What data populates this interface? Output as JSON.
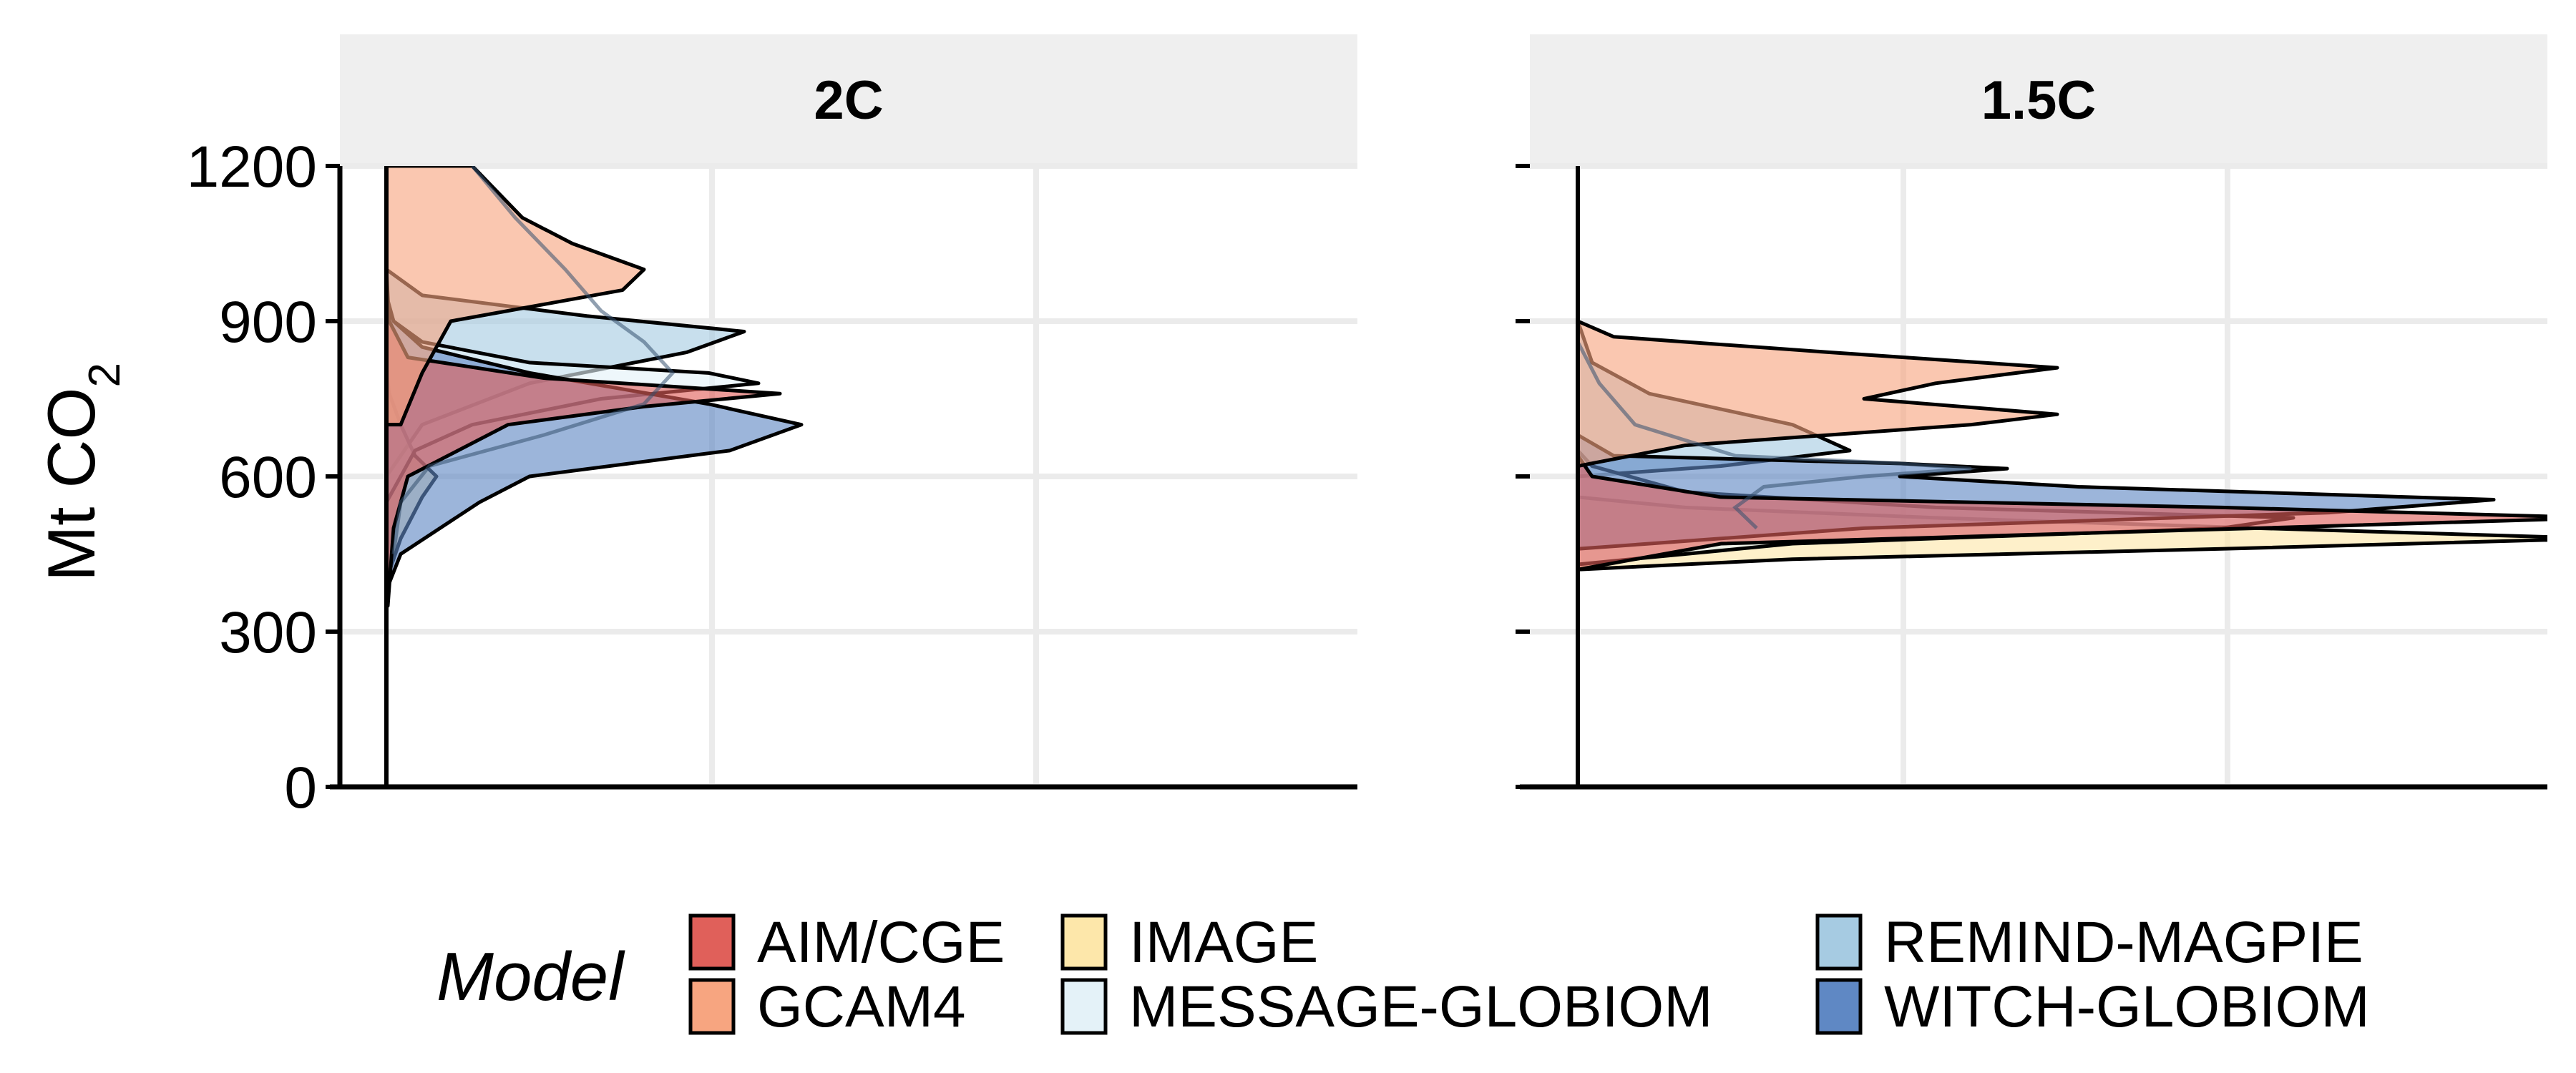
{
  "chart_data": {
    "type": "area",
    "chart_kind": "violin / density distributions by model, faceted",
    "ylabel": "Mt CO",
    "ylabel_subscript": "2",
    "ylim": [
      0,
      1200
    ],
    "yticks": [
      0,
      300,
      600,
      900,
      1200
    ],
    "grid": true,
    "legend": {
      "title": "Model",
      "placement": "bottom"
    },
    "colors": {
      "AIM/CGE": "#e0605a",
      "GCAM4": "#f7a580",
      "IMAGE": "#fde7aa",
      "MESSAGE-GLOBIOM": "#e4f2f8",
      "REMIND-MAGPIE": "#a6cbe2",
      "WITCH-GLOBIOM": "#5f88c4"
    },
    "series": [
      {
        "name": "AIM/CGE"
      },
      {
        "name": "GCAM4"
      },
      {
        "name": "IMAGE"
      },
      {
        "name": "MESSAGE-GLOBIOM"
      },
      {
        "name": "REMIND-MAGPIE"
      },
      {
        "name": "WITCH-GLOBIOM"
      }
    ],
    "facets": [
      {
        "title": "2C",
        "densities": {
          "AIM/CGE": [
            [
              350,
              0.002
            ],
            [
              500,
              0.01
            ],
            [
              600,
              0.03
            ],
            [
              700,
              0.17
            ],
            [
              735,
              0.36
            ],
            [
              760,
              0.55
            ],
            [
              790,
              0.22
            ],
            [
              830,
              0.03
            ],
            [
              900,
              0.004
            ],
            [
              1000,
              0.0
            ]
          ],
          "GCAM4": [
            [
              700,
              0.02
            ],
            [
              800,
              0.05
            ],
            [
              900,
              0.09
            ],
            [
              960,
              0.33
            ],
            [
              1000,
              0.36
            ],
            [
              1050,
              0.26
            ],
            [
              1100,
              0.19
            ],
            [
              1200,
              0.12
            ]
          ],
          "IMAGE": [
            [
              400,
              0.0
            ],
            [
              480,
              0.02
            ],
            [
              560,
              0.05
            ],
            [
              600,
              0.07
            ],
            [
              640,
              0.04
            ],
            [
              700,
              0.02
            ],
            [
              760,
              0.004
            ],
            [
              800,
              0.0
            ]
          ],
          "MESSAGE-GLOBIOM": [
            [
              550,
              0.0
            ],
            [
              650,
              0.04
            ],
            [
              700,
              0.12
            ],
            [
              750,
              0.3
            ],
            [
              780,
              0.52
            ],
            [
              800,
              0.45
            ],
            [
              820,
              0.2
            ],
            [
              860,
              0.05
            ],
            [
              900,
              0.01
            ],
            [
              950,
              0.0
            ]
          ],
          "REMIND-MAGPIE": [
            [
              600,
              0.0
            ],
            [
              700,
              0.05
            ],
            [
              780,
              0.2
            ],
            [
              840,
              0.42
            ],
            [
              880,
              0.5
            ],
            [
              910,
              0.28
            ],
            [
              950,
              0.05
            ],
            [
              1000,
              0.0
            ]
          ],
          "WITCH-GLOBIOM": [
            [
              380,
              0.0
            ],
            [
              450,
              0.02
            ],
            [
              550,
              0.13
            ],
            [
              600,
              0.2
            ],
            [
              650,
              0.48
            ],
            [
              700,
              0.58
            ],
            [
              740,
              0.45
            ],
            [
              800,
              0.2
            ],
            [
              850,
              0.05
            ],
            [
              900,
              0.01
            ],
            [
              940,
              0.0
            ]
          ]
        },
        "overlays": [
          [
            [
              450,
              0.01
            ],
            [
              550,
              0.02
            ],
            [
              620,
              0.06
            ],
            [
              680,
              0.22
            ],
            [
              740,
              0.36
            ],
            [
              800,
              0.4
            ],
            [
              860,
              0.36
            ],
            [
              920,
              0.3
            ],
            [
              1000,
              0.25
            ],
            [
              1100,
              0.18
            ],
            [
              1200,
              0.12
            ]
          ]
        ]
      },
      {
        "title": "1.5C",
        "densities": {
          "AIM/CGE": [
            [
              420,
              0.0
            ],
            [
              470,
              0.2
            ],
            [
              500,
              0.95
            ],
            [
              520,
              1.43
            ],
            [
              540,
              0.9
            ],
            [
              560,
              0.2
            ],
            [
              600,
              0.02
            ],
            [
              640,
              0.0
            ]
          ],
          "GCAM4": [
            [
              620,
              0.0
            ],
            [
              660,
              0.15
            ],
            [
              700,
              0.55
            ],
            [
              720,
              0.67
            ],
            [
              750,
              0.4
            ],
            [
              780,
              0.5
            ],
            [
              810,
              0.67
            ],
            [
              840,
              0.35
            ],
            [
              870,
              0.05
            ],
            [
              900,
              0.0
            ]
          ],
          "IMAGE": [
            [
              420,
              0.0
            ],
            [
              440,
              0.3
            ],
            [
              460,
              0.9
            ],
            [
              480,
              1.43
            ],
            [
              500,
              0.95
            ],
            [
              520,
              0.5
            ],
            [
              540,
              0.15
            ],
            [
              560,
              0.0
            ]
          ],
          "MESSAGE-GLOBIOM": [
            [
              430,
              0.0
            ],
            [
              470,
              0.3
            ],
            [
              500,
              0.9
            ],
            [
              520,
              1.0
            ],
            [
              540,
              0.5
            ],
            [
              570,
              0.15
            ],
            [
              620,
              0.02
            ],
            [
              650,
              0.0
            ]
          ],
          "REMIND-MAGPIE": [
            [
              600,
              0.0
            ],
            [
              620,
              0.2
            ],
            [
              650,
              0.38
            ],
            [
              700,
              0.3
            ],
            [
              760,
              0.1
            ],
            [
              820,
              0.02
            ],
            [
              900,
              0.0
            ]
          ],
          "WITCH-GLOBIOM": [
            [
              460,
              0.0
            ],
            [
              500,
              0.4
            ],
            [
              530,
              1.05
            ],
            [
              555,
              1.28
            ],
            [
              580,
              0.7
            ],
            [
              600,
              0.45
            ],
            [
              615,
              0.6
            ],
            [
              625,
              0.45
            ],
            [
              640,
              0.05
            ],
            [
              680,
              0.0
            ]
          ]
        },
        "overlays": [
          [
            [
              500,
              0.25
            ],
            [
              540,
              0.22
            ],
            [
              580,
              0.26
            ],
            [
              600,
              0.4
            ],
            [
              615,
              0.55
            ],
            [
              625,
              0.45
            ],
            [
              640,
              0.22
            ],
            [
              700,
              0.08
            ],
            [
              780,
              0.03
            ],
            [
              860,
              0.0
            ]
          ]
        ]
      }
    ]
  }
}
